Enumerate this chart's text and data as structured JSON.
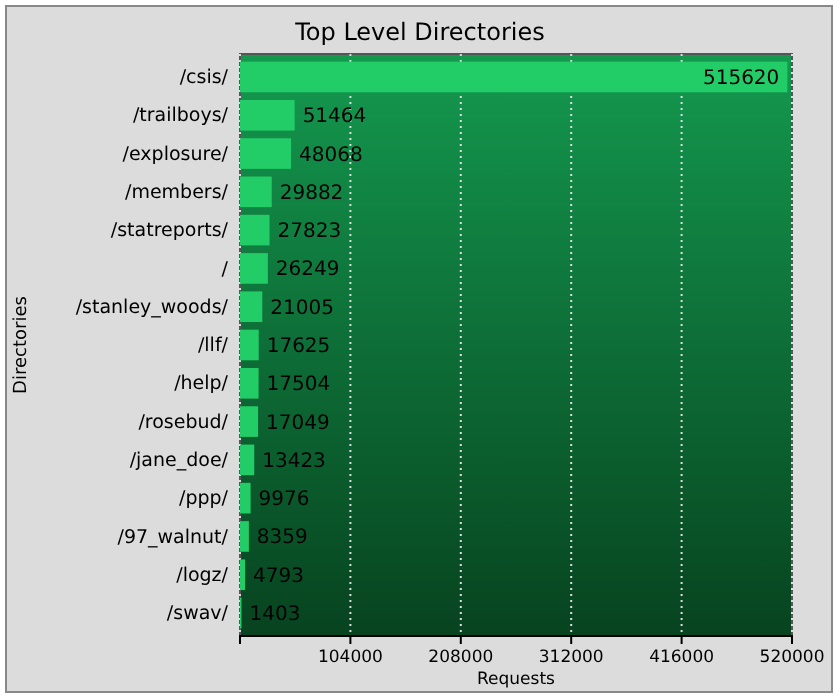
{
  "chart_data": {
    "type": "bar",
    "orientation": "horizontal",
    "title": "Top Level Directories",
    "xlabel": "Requests",
    "ylabel": "Directories",
    "categories": [
      "/csis/",
      "/trailboys/",
      "/explosure/",
      "/members/",
      "/statreports/",
      "/",
      "/stanley_woods/",
      "/llf/",
      "/help/",
      "/rosebud/",
      "/jane_doe/",
      "/ppp/",
      "/97_walnut/",
      "/logz/",
      "/swav/"
    ],
    "values": [
      515620,
      51464,
      48068,
      29882,
      27823,
      26249,
      21005,
      17625,
      17504,
      17049,
      13423,
      9976,
      8359,
      4793,
      1403
    ],
    "color": "#22cc66",
    "xlim": [
      0,
      520000
    ],
    "xticks": [
      {
        "value": 0,
        "label": null
      },
      104000,
      208000,
      312000,
      416000,
      520000
    ],
    "grid": "x",
    "data_labels": true
  }
}
